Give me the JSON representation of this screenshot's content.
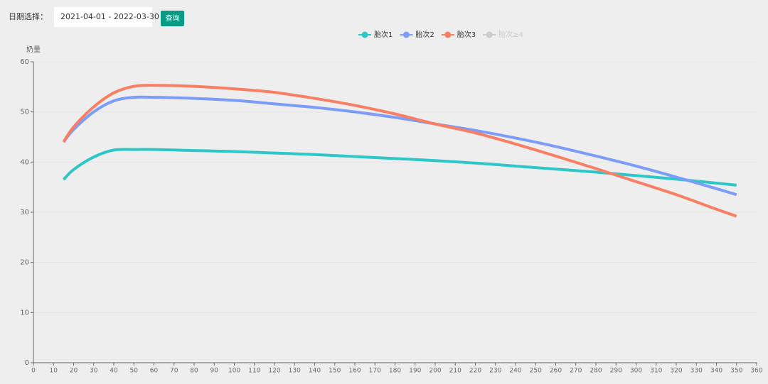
{
  "filter": {
    "label": "日期选择：",
    "value": "2021-04-01 - 2022-03-30",
    "button": "查询"
  },
  "chart_data": {
    "type": "line",
    "y_label": "奶量",
    "x": [
      15,
      20,
      30,
      40,
      50,
      60,
      80,
      100,
      120,
      140,
      160,
      180,
      200,
      220,
      240,
      260,
      280,
      300,
      320,
      340,
      350
    ],
    "series": [
      {
        "name": "胎次1",
        "color": "#2ec7c9",
        "values": [
          36.5,
          38.5,
          41.0,
          42.4,
          42.5,
          42.5,
          42.3,
          42.1,
          41.8,
          41.5,
          41.1,
          40.7,
          40.3,
          39.8,
          39.2,
          38.6,
          38.0,
          37.3,
          36.6,
          35.8,
          35.4
        ]
      },
      {
        "name": "胎次2",
        "color": "#7b9cf8",
        "values": [
          44.0,
          46.5,
          50.0,
          52.2,
          52.9,
          52.9,
          52.7,
          52.3,
          51.6,
          50.9,
          50.0,
          48.9,
          47.6,
          46.3,
          44.8,
          43.1,
          41.2,
          39.2,
          37.0,
          34.7,
          33.5
        ]
      },
      {
        "name": "胎次3",
        "color": "#f97f64",
        "values": [
          44.0,
          47.0,
          51.0,
          53.8,
          55.1,
          55.3,
          55.1,
          54.6,
          53.9,
          52.7,
          51.3,
          49.6,
          47.6,
          45.8,
          43.6,
          41.2,
          38.7,
          36.1,
          33.5,
          30.6,
          29.2
        ]
      },
      {
        "name": "胎次≥4",
        "color": "#cccccc",
        "hidden": true,
        "values": [
          null,
          null,
          null,
          null,
          null,
          null,
          null,
          null,
          null,
          null,
          null,
          null,
          null,
          null,
          null,
          null,
          null,
          null,
          null,
          null,
          null
        ]
      }
    ],
    "xlim": [
      0,
      360
    ],
    "xticks": [
      0,
      10,
      20,
      30,
      40,
      50,
      60,
      70,
      80,
      90,
      100,
      110,
      120,
      130,
      140,
      150,
      160,
      170,
      180,
      190,
      200,
      210,
      220,
      230,
      240,
      250,
      260,
      270,
      280,
      290,
      300,
      310,
      320,
      330,
      340,
      350,
      360
    ],
    "ylim": [
      0,
      60
    ],
    "yticks": [
      0,
      10,
      20,
      30,
      40,
      50,
      60
    ],
    "grid": true
  }
}
